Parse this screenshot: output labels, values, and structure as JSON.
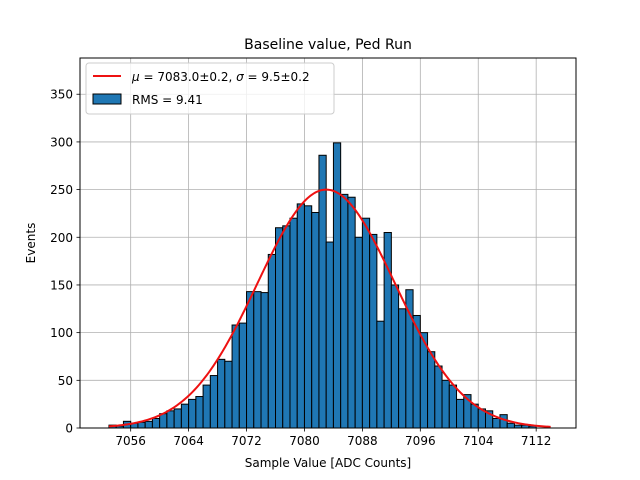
{
  "chart_data": {
    "type": "bar",
    "title": "Baseline value, Ped Run",
    "xlabel": "Sample Value [ADC Counts]",
    "ylabel": "Events",
    "xlim": [
      7049.0,
      7117.5
    ],
    "ylim": [
      0,
      388
    ],
    "xticks": [
      7056,
      7064,
      7072,
      7080,
      7088,
      7096,
      7104,
      7112
    ],
    "yticks": [
      0,
      50,
      100,
      150,
      200,
      250,
      300,
      350
    ],
    "grid": true,
    "legend_position": "top-left",
    "bin_width": 1,
    "bins_start": 7053,
    "histogram": {
      "name": "RMS = 9.41",
      "color": "#1f77b4",
      "edge_color": "#000000",
      "values": [
        3,
        2,
        7,
        5,
        6,
        7,
        10,
        15,
        18,
        20,
        25,
        30,
        33,
        45,
        55,
        72,
        70,
        108,
        110,
        143,
        143,
        142,
        182,
        210,
        212,
        220,
        235,
        233,
        226,
        286,
        195,
        299,
        245,
        242,
        200,
        220,
        203,
        112,
        205,
        150,
        125,
        145,
        118,
        100,
        80,
        65,
        50,
        45,
        30,
        35,
        25,
        20,
        18,
        10,
        14,
        5,
        3,
        3,
        2
      ]
    },
    "fit": {
      "name": "$\\mu = 7083.0\\pm0.2$, $\\sigma = 9.5\\pm0.2$",
      "color": "#ee1111",
      "mu": 7083.0,
      "sigma": 9.5,
      "amplitude": 250,
      "x_range": [
        7053,
        7114
      ]
    }
  },
  "legend": {
    "fit_label_prefix": "μ",
    "fit_label_middle": " = 7083.0±0.2, ",
    "fit_label_sigma": "σ",
    "fit_label_suffix": " = 9.5±0.2",
    "hist_label": "RMS = 9.41"
  }
}
